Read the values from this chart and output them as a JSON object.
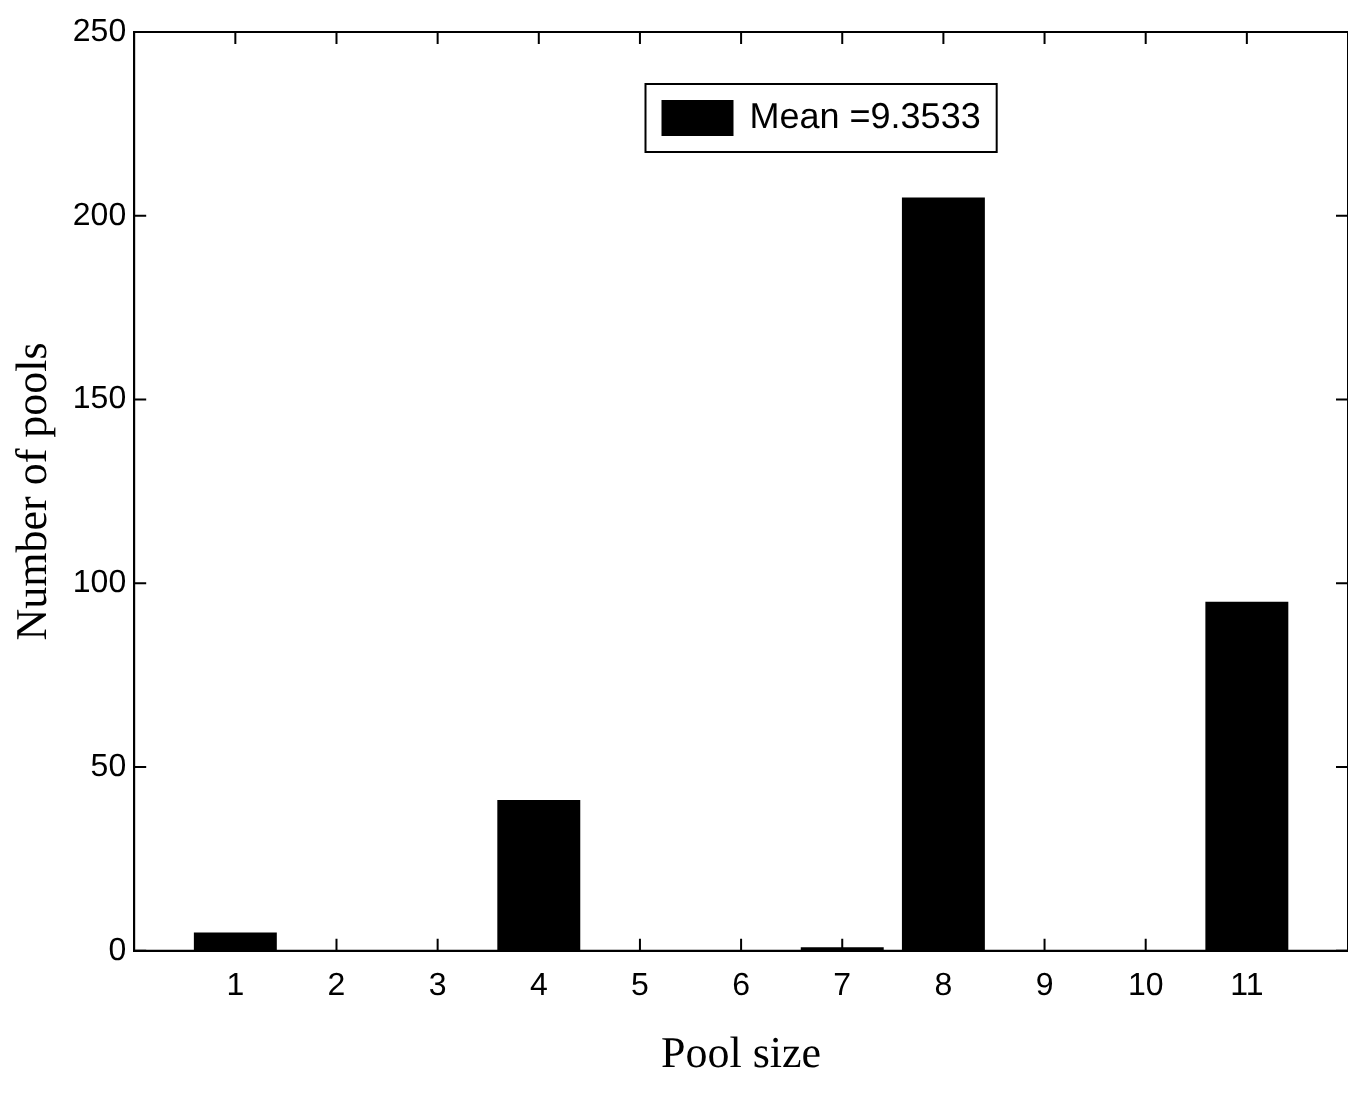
{
  "chart_data": {
    "type": "bar",
    "xlabel": "Pool size",
    "ylabel": "Number of pools",
    "x": [
      1,
      2,
      3,
      4,
      5,
      6,
      7,
      8,
      9,
      10,
      11
    ],
    "series": [
      {
        "name": "Mean =9.3533",
        "color": "#000000",
        "values": [
          5,
          0,
          0,
          41,
          0,
          0,
          1,
          205,
          0,
          0,
          95
        ]
      }
    ],
    "xlim": [
      0,
      12
    ],
    "xticks": [
      1,
      2,
      3,
      4,
      5,
      6,
      7,
      8,
      9,
      10,
      11
    ],
    "ylim": [
      0,
      250
    ],
    "yticks": [
      0,
      50,
      100,
      150,
      200,
      250
    ],
    "legend": "top"
  }
}
